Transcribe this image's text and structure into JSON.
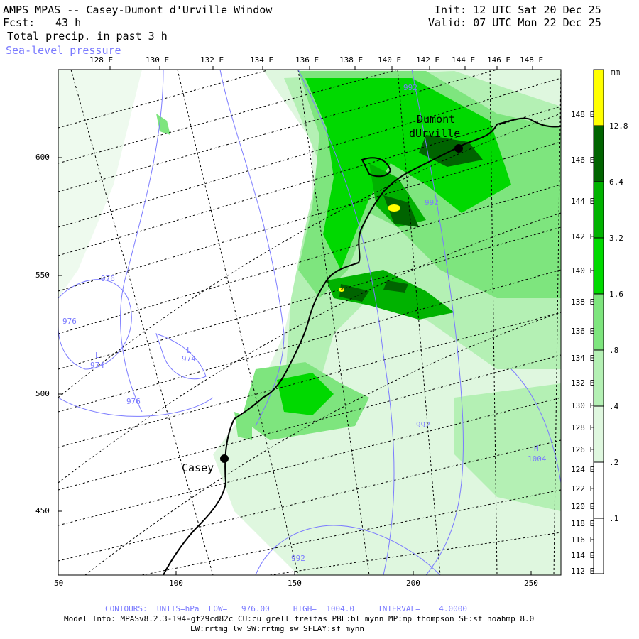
{
  "header": {
    "title": "AMPS MPAS -- Casey-Dumont d'Urville Window",
    "fcst_label": "Fcst:",
    "fcst_value": "43 h",
    "field": "Total precip. in past 3 h",
    "overlay": "Sea-level pressure",
    "init": "Init: 12 UTC Sat 20 Dec 25",
    "valid": "Valid: 07 UTC Mon 22 Dec 25"
  },
  "top_lon_labels": [
    "128 E",
    "130 E",
    "132 E",
    "134 E",
    "136 E",
    "138 E",
    "140 E",
    "142 E",
    "144 E",
    "146 E",
    "148 E"
  ],
  "right_lon_labels": [
    "148 E",
    "146 E",
    "144 E",
    "142 E",
    "140 E",
    "138 E",
    "136 E",
    "134 E",
    "132 E",
    "130 E",
    "128 E",
    "126 E",
    "124 E",
    "122 E",
    "120 E",
    "118 E",
    "116 E",
    "114 E",
    "112 E"
  ],
  "y_ticks": [
    450,
    500,
    550,
    600
  ],
  "x_ticks": [
    50,
    100,
    150,
    200,
    250
  ],
  "stations": [
    {
      "name": "Casey"
    },
    {
      "name_line1": "Dumont",
      "name_line2": "dUrville"
    }
  ],
  "pressure_labels": [
    "992",
    "992",
    "976",
    "976",
    "974",
    "974",
    "976",
    "992",
    "1004",
    "992"
  ],
  "pressure_marks": [
    "L",
    "L",
    "H"
  ],
  "legend": {
    "unit": "mm",
    "levels": [
      "12.8",
      "6.4",
      "3.2",
      "1.6",
      ".8",
      ".4",
      ".2",
      ".1"
    ],
    "colors": [
      "#ffff00",
      "#006400",
      "#00b200",
      "#00d900",
      "#7ee57e",
      "#b4f0b4",
      "#dff7df",
      "#ffffff"
    ]
  },
  "footer": {
    "contours": "CONTOURS:  UNITS=hPa  LOW=   976.00     HIGH=  1004.0     INTERVAL=    4.0000",
    "model_info": "Model Info: MPASv8.2.3-194-gf29cd82c CU:cu_grell_freitas PBL:bl_mynn MP:mp_thompson SF:sf_noahmp 8.0",
    "schemes": "LW:rrtmg_lw SW:rrtmg_sw SFLAY:sf_mynn"
  }
}
